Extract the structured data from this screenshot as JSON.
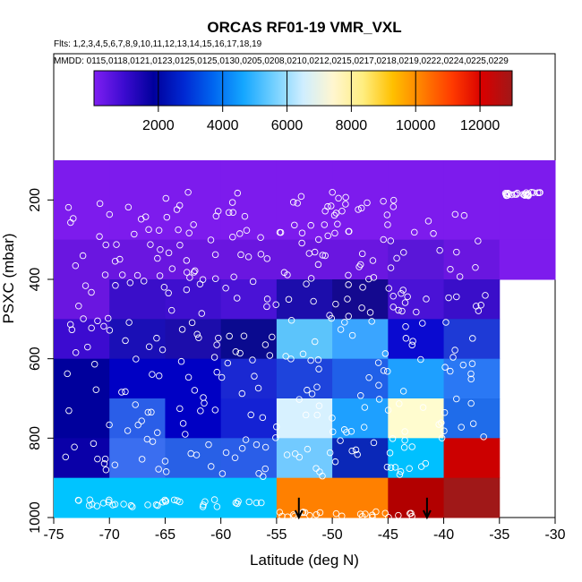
{
  "chart_data": {
    "type": "heatmap",
    "title": "ORCAS RF01-19 VMR_VXL",
    "flights_label": "Flts: 1,2,3,4,5,6,7,8,9,10,11,12,13,14,15,16,17,18,19",
    "dates_label": "MMDD: 0115,0118,0121,0123,0125,0125,0130,0205,0208,0210,0212,0215,0217,0218,0219,0222,0224,0225,0229",
    "xlabel": "Latitude (deg N)",
    "ylabel": "PSXC (mbar)",
    "xlim": [
      -75,
      -30
    ],
    "ylim": [
      1000,
      100
    ],
    "xticks": [
      -75,
      -70,
      -65,
      -60,
      -55,
      -50,
      -45,
      -40,
      -35,
      -30
    ],
    "xtick_labels": [
      "-75",
      "-70",
      "-65",
      "-60",
      "-55",
      "-50",
      "-45",
      "-40",
      "-35",
      "-30"
    ],
    "yticks": [
      200,
      400,
      600,
      800,
      1000
    ],
    "ytick_labels": [
      "200",
      "400",
      "600",
      "800",
      "1000"
    ],
    "colorbar": {
      "min": 0,
      "max": 13000,
      "ticks": [
        2000,
        4000,
        6000,
        8000,
        10000,
        12000
      ],
      "tick_labels": [
        "2000",
        "4000",
        "6000",
        "8000",
        "10000",
        "12000"
      ],
      "colors": [
        "#7f1ff2",
        "#3c0bd0",
        "#00009c",
        "#0028d2",
        "#0066f0",
        "#14a6ff",
        "#70cfff",
        "#cfeeff",
        "#fff6d0",
        "#ffee80",
        "#ffc000",
        "#ff7e00",
        "#ff3a00",
        "#d80000",
        "#a01818"
      ]
    },
    "x_edges": [
      -75,
      -70,
      -65,
      -60,
      -55,
      -50,
      -45,
      -40,
      -35,
      -30
    ],
    "y_edges": [
      100,
      300,
      400,
      500,
      600,
      700,
      800,
      900,
      1000
    ],
    "cell_colors": [
      [
        "#7d1bed",
        "#7d1bed",
        "#7d1bed",
        "#7d1bed",
        "#7d1bed",
        "#7d1bed",
        "#7d1bed",
        "#7d1bed",
        "#7d1bed"
      ],
      [
        "#6a16e0",
        "#6a16e0",
        "#6a16e0",
        "#6a16e0",
        "#6a16e0",
        "#6a16e0",
        "#5a16d8",
        "#6a16e0",
        "#7d1bed"
      ],
      [
        "#6a16e0",
        "#3a0ec9",
        "#3f0fcf",
        "#4a12d6",
        "#1c0dab",
        "#14098f",
        "#4a12d6",
        "#3a0ec9",
        null
      ],
      [
        "#3c0bd0",
        "#1a0fb6",
        "#1c0dab",
        "#0a0a8f",
        "#5cc4fb",
        "#3aa5ff",
        "#0a0ad0",
        "#1e3ad6",
        null
      ],
      [
        "#00009c",
        "#0000c4",
        "#0000c4",
        "#1a28d2",
        "#1e44dc",
        "#2060e8",
        "#1ea0ff",
        "#2a78f4",
        null
      ],
      [
        "#00009c",
        "#2a5ee8",
        "#0000c4",
        "#1422d4",
        "#d7f1ff",
        "#1ea0ff",
        "#fffccf",
        "#1f6cea",
        null
      ],
      [
        "#0a00a8",
        "#3a6ef0",
        "#2860e6",
        "#2a5ee8",
        "#72caff",
        "#0a28b8",
        "#00c0ff",
        "#cc0000",
        null
      ],
      [
        "#00c4ff",
        "#00c4ff",
        "#00c4ff",
        "#00c4ff",
        "#ff8000",
        "#ff8000",
        "#b20000",
        "#a01818",
        null
      ]
    ],
    "arrows": [
      {
        "x": -53,
        "y_from": 950,
        "y_to": 1000
      },
      {
        "x": -41.5,
        "y_from": 950,
        "y_to": 1000
      }
    ]
  }
}
